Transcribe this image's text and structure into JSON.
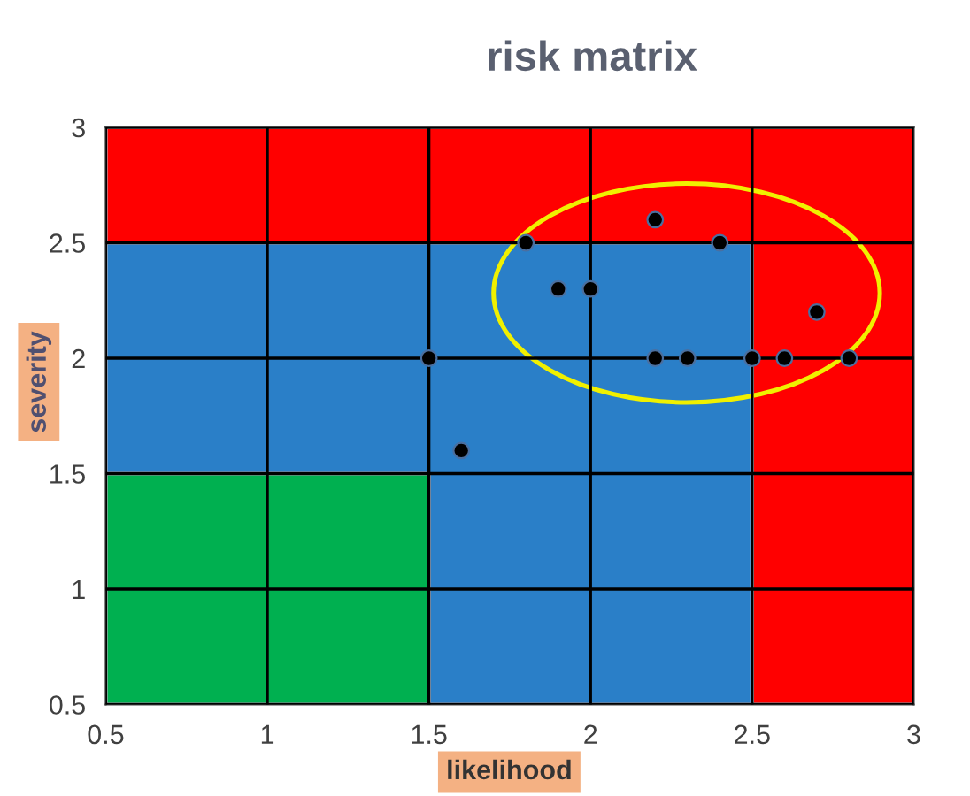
{
  "chart_data": {
    "type": "scatter",
    "title": "risk matrix",
    "xlabel": "likelihood",
    "ylabel": "severity",
    "series": [
      {
        "type": "area",
        "x": [
          0.5,
          3
        ],
        "values": [
          3,
          3
        ],
        "color": "#ff0000"
      },
      {
        "type": "area",
        "x": [
          0.5,
          2.5
        ],
        "values": [
          2.5,
          2.5
        ],
        "color": "#2a7fc8"
      },
      {
        "type": "area",
        "x": [
          0.5,
          1.5
        ],
        "values": [
          1.5,
          1.5
        ],
        "color": "#00b050"
      },
      {
        "marker": "circle",
        "x": [
          1.8,
          1.9,
          2.0,
          2.2,
          2.4,
          1.5,
          2.2,
          2.3,
          2.5,
          2.6,
          2.8,
          2.7,
          1.6
        ],
        "values": [
          2.5,
          2.3,
          2.3,
          2.6,
          2.5,
          2.0,
          2.0,
          2.0,
          2.0,
          2.0,
          2.0,
          2.2,
          1.6
        ],
        "color": "#000000"
      }
    ],
    "grid": true,
    "xlim": [
      0.5,
      3
    ],
    "xticks": [
      0.5,
      1,
      1.5,
      2,
      2.5,
      3
    ],
    "ylim": [
      0.5,
      3
    ],
    "yticks": [
      0.5,
      1,
      1.5,
      2,
      2.5,
      3
    ]
  }
}
